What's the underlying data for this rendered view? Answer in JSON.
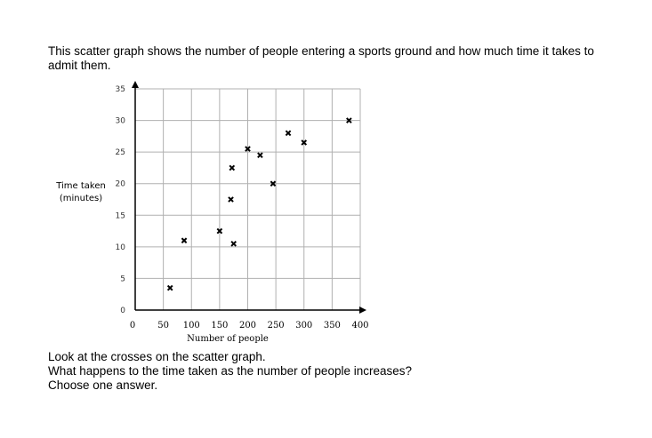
{
  "intro": {
    "line1": "This scatter graph shows the number of people entering a sports ground and how much time it takes to",
    "line2": "admit them."
  },
  "chart_data": {
    "type": "scatter",
    "xlabel": "Number of people",
    "ylabel_line1": "Time taken",
    "ylabel_line2": "(minutes)",
    "xlim": [
      0,
      400
    ],
    "ylim": [
      0,
      35
    ],
    "grid": true,
    "xticks": [
      0,
      50,
      100,
      150,
      200,
      250,
      300,
      350,
      400
    ],
    "xtick_labels": [
      "0",
      "50",
      "100",
      "150",
      "200",
      "250",
      "300",
      "350",
      "400"
    ],
    "yticks": [
      0,
      5,
      10,
      15,
      20,
      25,
      30,
      35
    ],
    "ytick_labels": [
      "0",
      "5",
      "10",
      "15",
      "20",
      "25",
      "30",
      "35"
    ],
    "marker": "x",
    "points": [
      {
        "x": 62,
        "y": 3.5
      },
      {
        "x": 87,
        "y": 11
      },
      {
        "x": 150,
        "y": 12.5
      },
      {
        "x": 170,
        "y": 17.5
      },
      {
        "x": 172,
        "y": 22.5
      },
      {
        "x": 175,
        "y": 10.5
      },
      {
        "x": 200,
        "y": 25.5
      },
      {
        "x": 222,
        "y": 24.5
      },
      {
        "x": 245,
        "y": 20
      },
      {
        "x": 272,
        "y": 28
      },
      {
        "x": 300,
        "y": 26.5
      },
      {
        "x": 380,
        "y": 30
      }
    ]
  },
  "question": {
    "line1": "Look at the crosses on the scatter graph.",
    "line2": "What happens to the time taken as the number of people increases?",
    "line3": "Choose one answer."
  }
}
